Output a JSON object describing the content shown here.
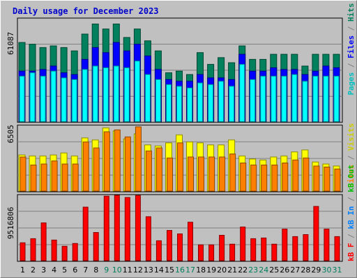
{
  "chart_data": [
    {
      "type": "bar",
      "title": "Daily usage for December 2023",
      "ymax_label": "61087",
      "ymax": 61087,
      "categories": [
        "1",
        "2",
        "3",
        "4",
        "5",
        "6",
        "7",
        "8",
        "9",
        "10",
        "11",
        "12",
        "13",
        "14",
        "15",
        "16",
        "17",
        "18",
        "19",
        "20",
        "21",
        "22",
        "23",
        "24",
        "25",
        "26",
        "27",
        "28",
        "29",
        "30",
        "31"
      ],
      "weekend_days": [
        "9",
        "10",
        "16",
        "17",
        "23",
        "24",
        "30",
        "31"
      ],
      "series": [
        {
          "name": "Hits",
          "color": "#00805c",
          "values": [
            47000,
            46000,
            44000,
            45000,
            44000,
            42000,
            52000,
            58000,
            55000,
            58000,
            50000,
            55000,
            48000,
            42000,
            29000,
            30000,
            28000,
            41000,
            34000,
            38000,
            35000,
            45000,
            37000,
            37000,
            40000,
            40000,
            40000,
            33000,
            40000,
            40000,
            40000
          ]
        },
        {
          "name": "Files",
          "color": "#0000ff",
          "values": [
            30000,
            30000,
            31000,
            33000,
            29000,
            28000,
            37000,
            44000,
            41000,
            47000,
            42000,
            46000,
            39000,
            31000,
            25000,
            24000,
            24000,
            28000,
            26000,
            26000,
            25000,
            40000,
            30000,
            30000,
            32000,
            31000,
            31000,
            28000,
            30000,
            33000,
            32000
          ]
        },
        {
          "name": "Pages",
          "color": "#00ffff",
          "values": [
            27000,
            29000,
            27000,
            30000,
            26000,
            25000,
            31000,
            33000,
            32000,
            33000,
            32000,
            36000,
            28000,
            25000,
            22000,
            21000,
            20000,
            23000,
            22000,
            24000,
            21000,
            34000,
            25000,
            27000,
            27000,
            27000,
            28000,
            24000,
            27000,
            27000,
            27000
          ]
        }
      ]
    },
    {
      "type": "bar",
      "ymax_label": "6505",
      "ymax": 6505,
      "categories": [
        "1",
        "2",
        "3",
        "4",
        "5",
        "6",
        "7",
        "8",
        "9",
        "10",
        "11",
        "12",
        "13",
        "14",
        "15",
        "16",
        "17",
        "18",
        "19",
        "20",
        "21",
        "22",
        "23",
        "24",
        "25",
        "26",
        "27",
        "28",
        "29",
        "30",
        "31"
      ],
      "series": [
        {
          "name": "Visits",
          "color": "#ffff00",
          "values": [
            3600,
            3500,
            3500,
            3600,
            3800,
            3500,
            5300,
            5100,
            6300,
            6000,
            5200,
            5700,
            4600,
            4500,
            4800,
            5600,
            4900,
            4800,
            4600,
            4600,
            5100,
            3500,
            3200,
            3100,
            3400,
            3500,
            3900,
            4100,
            2900,
            2700,
            2500
          ]
        },
        {
          "name": "Sites",
          "color": "#ff8000",
          "values": [
            3400,
            2600,
            2700,
            3000,
            2700,
            2700,
            4900,
            4300,
            5900,
            6100,
            5400,
            6400,
            4000,
            4300,
            3300,
            4800,
            3400,
            3400,
            3400,
            3400,
            3700,
            2800,
            2600,
            2600,
            2600,
            2800,
            3100,
            3300,
            2500,
            2400,
            2200
          ]
        }
      ]
    },
    {
      "type": "bar",
      "ymax_label": "9516806",
      "ymax": 9516806,
      "categories": [
        "1",
        "2",
        "3",
        "4",
        "5",
        "6",
        "7",
        "8",
        "9",
        "10",
        "11",
        "12",
        "13",
        "14",
        "15",
        "16",
        "17",
        "18",
        "19",
        "20",
        "21",
        "22",
        "23",
        "24",
        "25",
        "26",
        "27",
        "28",
        "29",
        "30",
        "31"
      ],
      "series": [
        {
          "name": "KB F",
          "color": "#ff0000",
          "values": [
            2600,
            3200,
            5500,
            3000,
            2100,
            2500,
            7800,
            4100,
            9400,
            9900,
            9200,
            9500,
            6400,
            2900,
            4400,
            3900,
            5600,
            2300,
            2300,
            3700,
            2400,
            4900,
            3200,
            3300,
            2400,
            4600,
            3500,
            3800,
            7900,
            4600,
            3500
          ]
        }
      ]
    }
  ],
  "right_labels": {
    "top": [
      {
        "text": "Pages",
        "color": "#00c0c0"
      },
      {
        "text": " / ",
        "color": "#808080"
      },
      {
        "text": "Files",
        "color": "#0000ff"
      },
      {
        "text": " / ",
        "color": "#808080"
      },
      {
        "text": "Hits",
        "color": "#00805c"
      }
    ],
    "middle": [
      {
        "text": "Sites",
        "color": "#ff8000"
      },
      {
        "text": " / ",
        "color": "#808080"
      },
      {
        "text": "Visits",
        "color": "#cccc00"
      }
    ],
    "bottom": [
      {
        "text": "kB F",
        "color": "#ff0000"
      },
      {
        "text": " / ",
        "color": "#808080"
      },
      {
        "text": "kB In",
        "color": "#0080ff"
      },
      {
        "text": " / ",
        "color": "#808080"
      },
      {
        "text": "kB Out",
        "color": "#00c000"
      }
    ]
  },
  "colors": {
    "weekday_label": "#000000",
    "weekend_label": "#00805c"
  }
}
